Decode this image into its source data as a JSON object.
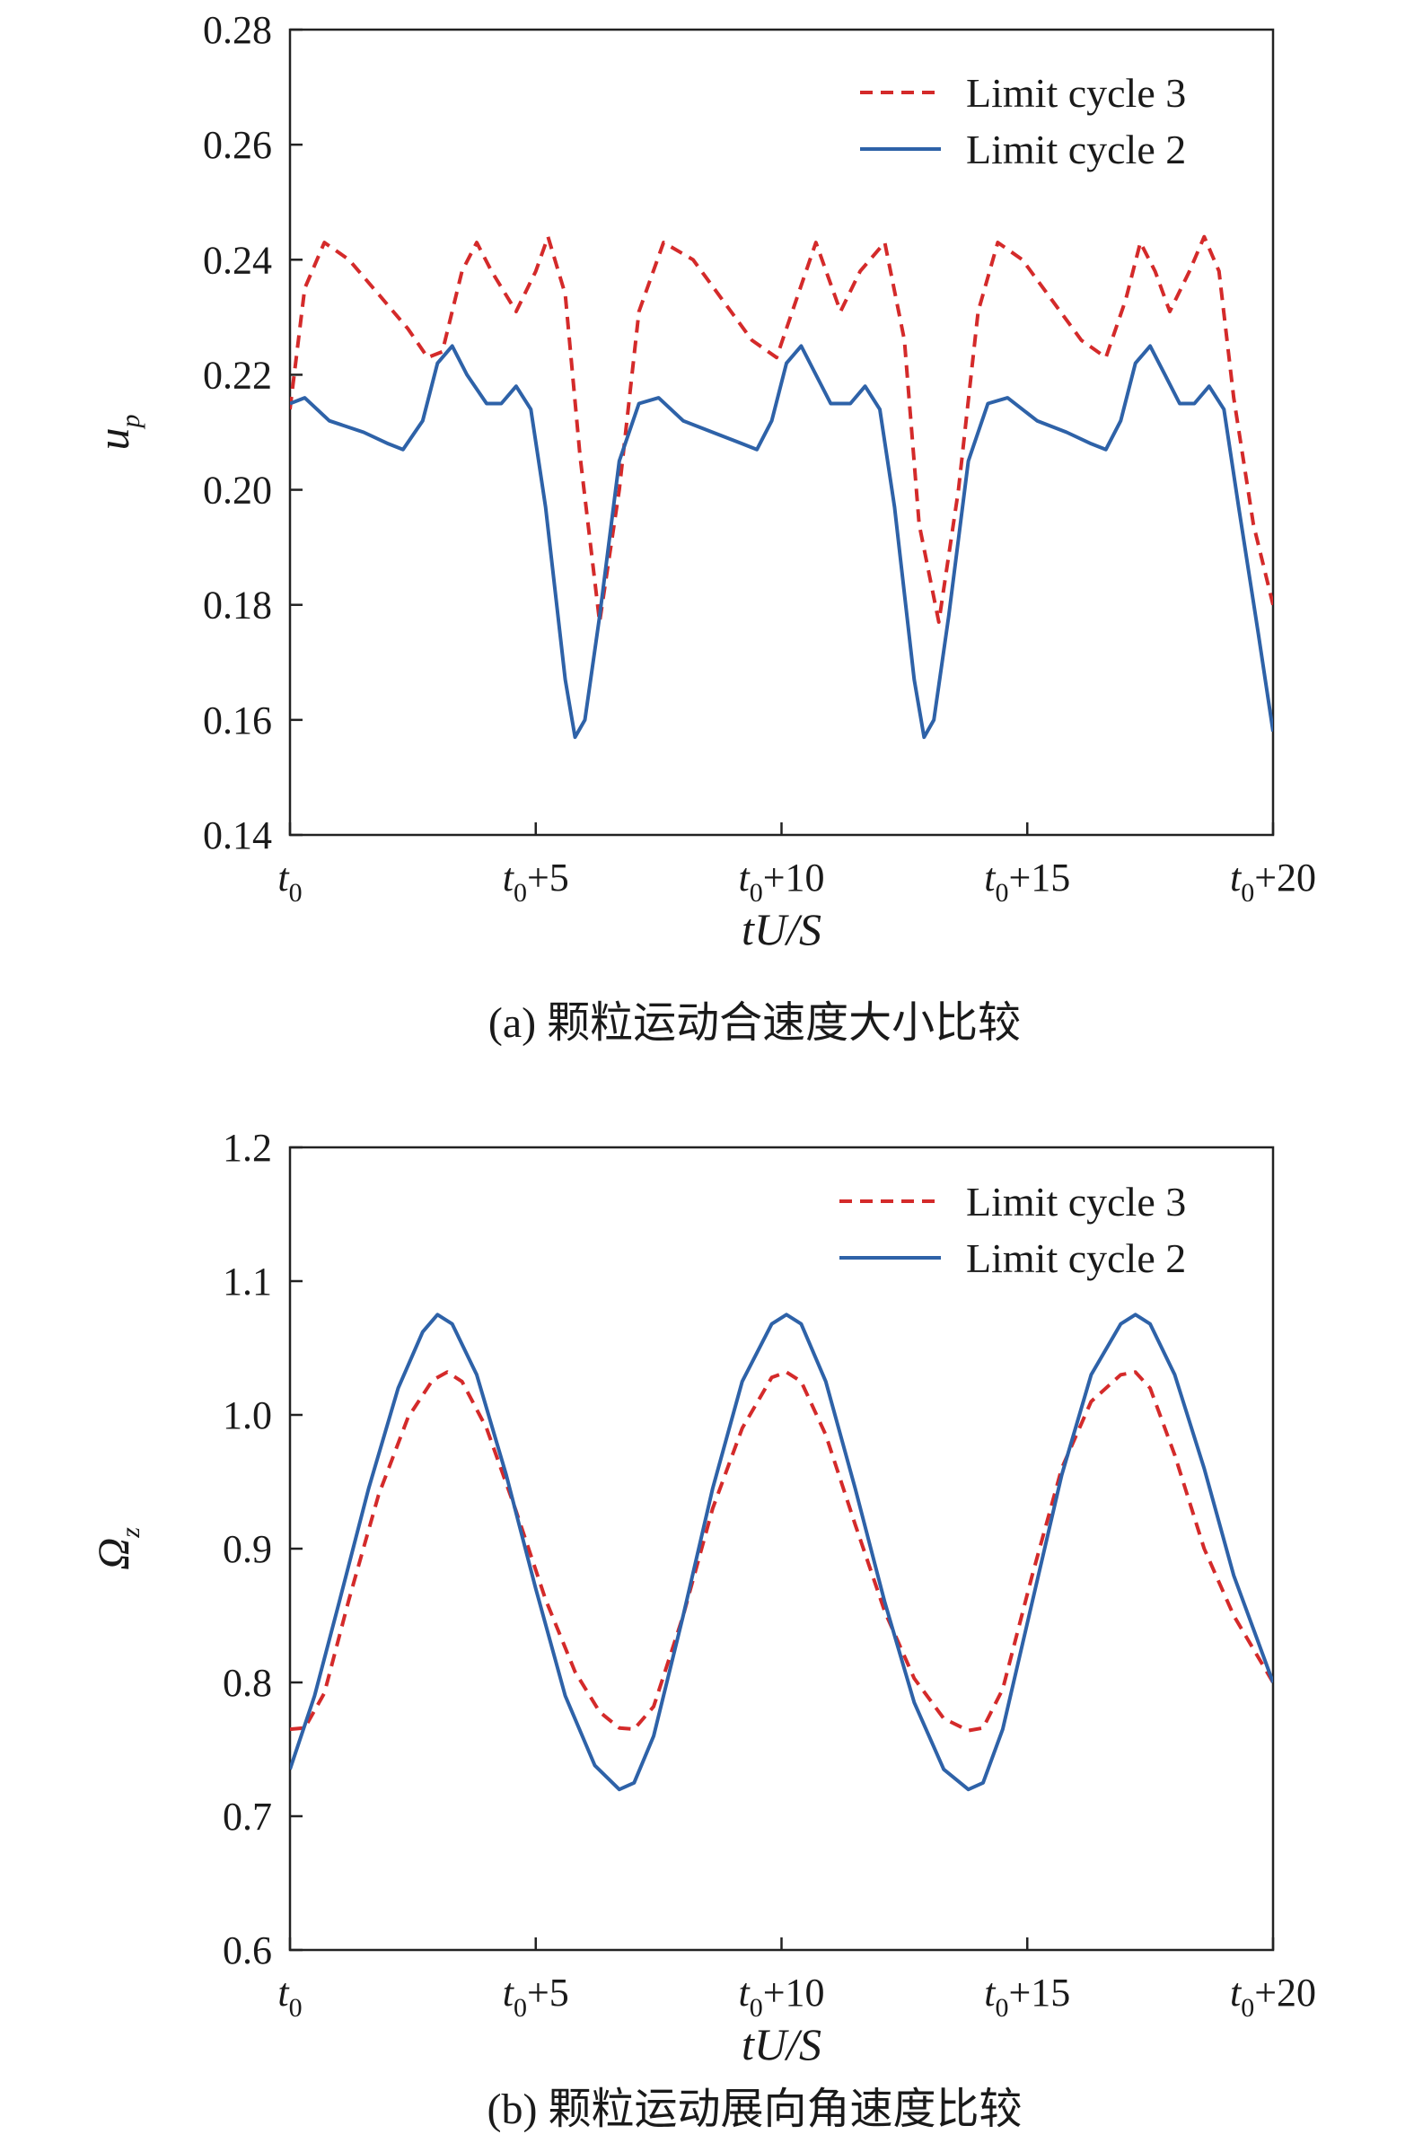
{
  "chart_data": [
    {
      "type": "line",
      "caption": "(a) 颗粒运动合速度大小比较",
      "xlabel": "tU/S",
      "ylabel": "u_p",
      "xlim": [
        0,
        20
      ],
      "ylim": [
        0.14,
        0.28
      ],
      "xticks": [
        0,
        5,
        10,
        15,
        20
      ],
      "xtick_labels": [
        "t_0",
        "t_0+5",
        "t_0+10",
        "t_0+15",
        "t_0+20"
      ],
      "yticks": [
        0.14,
        0.16,
        0.18,
        0.2,
        0.22,
        0.24,
        0.26,
        0.28
      ],
      "ytick_labels": [
        "0.14",
        "0.16",
        "0.18",
        "0.20",
        "0.22",
        "0.24",
        "0.26",
        "0.28"
      ],
      "legend_position": "top-right",
      "series": [
        {
          "name": "Limit cycle 3",
          "color": "#d42a2a",
          "style": "dashed",
          "x": [
            0,
            0.3,
            0.7,
            1.2,
            1.8,
            2.4,
            2.8,
            3.1,
            3.5,
            3.8,
            4.1,
            4.6,
            5.0,
            5.25,
            5.6,
            5.9,
            6.3,
            6.7,
            7.1,
            7.6,
            8.2,
            8.8,
            9.4,
            9.9,
            10.3,
            10.7,
            11.2,
            11.6,
            12.1,
            12.5,
            12.8,
            13.2,
            13.6,
            14.0,
            14.4,
            14.9,
            15.5,
            16.1,
            16.6,
            17.0,
            17.3,
            17.6,
            17.9,
            18.3,
            18.6,
            18.9,
            19.2,
            19.6,
            20.0
          ],
          "y": [
            0.214,
            0.235,
            0.243,
            0.24,
            0.234,
            0.228,
            0.223,
            0.224,
            0.238,
            0.243,
            0.238,
            0.231,
            0.238,
            0.244,
            0.234,
            0.206,
            0.177,
            0.2,
            0.231,
            0.243,
            0.24,
            0.233,
            0.226,
            0.223,
            0.233,
            0.243,
            0.231,
            0.238,
            0.243,
            0.226,
            0.194,
            0.177,
            0.2,
            0.231,
            0.243,
            0.24,
            0.233,
            0.226,
            0.223,
            0.233,
            0.243,
            0.238,
            0.231,
            0.238,
            0.244,
            0.238,
            0.216,
            0.194,
            0.18
          ]
        },
        {
          "name": "Limit cycle 2",
          "color": "#2e62a8",
          "style": "solid",
          "x": [
            0,
            0.3,
            0.8,
            1.5,
            2.0,
            2.3,
            2.7,
            3.0,
            3.3,
            3.6,
            4.0,
            4.3,
            4.6,
            4.9,
            5.2,
            5.6,
            5.8,
            6.0,
            6.3,
            6.7,
            7.1,
            7.5,
            8.0,
            8.6,
            9.2,
            9.5,
            9.8,
            10.1,
            10.4,
            10.7,
            11.0,
            11.4,
            11.7,
            12.0,
            12.3,
            12.7,
            12.9,
            13.1,
            13.4,
            13.8,
            14.2,
            14.6,
            15.2,
            15.8,
            16.3,
            16.6,
            16.9,
            17.2,
            17.5,
            17.8,
            18.1,
            18.4,
            18.7,
            19.0,
            19.3,
            19.7,
            20.0
          ],
          "y": [
            0.215,
            0.216,
            0.212,
            0.21,
            0.208,
            0.207,
            0.212,
            0.222,
            0.225,
            0.22,
            0.215,
            0.215,
            0.218,
            0.214,
            0.197,
            0.167,
            0.157,
            0.16,
            0.178,
            0.205,
            0.215,
            0.216,
            0.212,
            0.21,
            0.208,
            0.207,
            0.212,
            0.222,
            0.225,
            0.22,
            0.215,
            0.215,
            0.218,
            0.214,
            0.197,
            0.167,
            0.157,
            0.16,
            0.178,
            0.205,
            0.215,
            0.216,
            0.212,
            0.21,
            0.208,
            0.207,
            0.212,
            0.222,
            0.225,
            0.22,
            0.215,
            0.215,
            0.218,
            0.214,
            0.197,
            0.175,
            0.158
          ]
        }
      ]
    },
    {
      "type": "line",
      "caption": "(b) 颗粒运动展向角速度比较",
      "xlabel": "tU/S",
      "ylabel": "Ω_z",
      "xlim": [
        0,
        20
      ],
      "ylim": [
        0.6,
        1.2
      ],
      "xticks": [
        0,
        5,
        10,
        15,
        20
      ],
      "xtick_labels": [
        "t_0",
        "t_0+5",
        "t_0+10",
        "t_0+15",
        "t_0+20"
      ],
      "yticks": [
        0.6,
        0.7,
        0.8,
        0.9,
        1.0,
        1.1,
        1.2
      ],
      "ytick_labels": [
        "0.6",
        "0.7",
        "0.8",
        "0.9",
        "1.0",
        "1.1",
        "1.2"
      ],
      "legend_position": "top-right",
      "series": [
        {
          "name": "Limit cycle 3",
          "color": "#d42a2a",
          "style": "dashed",
          "x": [
            0,
            0.3,
            0.7,
            1.2,
            1.8,
            2.4,
            2.9,
            3.2,
            3.5,
            4.0,
            4.6,
            5.2,
            5.8,
            6.3,
            6.7,
            7.0,
            7.4,
            8.0,
            8.6,
            9.2,
            9.8,
            10.1,
            10.4,
            10.9,
            11.5,
            12.1,
            12.7,
            13.3,
            13.8,
            14.1,
            14.5,
            15.1,
            15.7,
            16.3,
            16.9,
            17.2,
            17.5,
            18.0,
            18.6,
            19.2,
            20.0
          ],
          "y": [
            0.765,
            0.766,
            0.792,
            0.862,
            0.94,
            0.998,
            1.026,
            1.032,
            1.025,
            0.99,
            0.928,
            0.862,
            0.808,
            0.778,
            0.766,
            0.765,
            0.782,
            0.85,
            0.93,
            0.99,
            1.028,
            1.032,
            1.025,
            0.985,
            0.918,
            0.853,
            0.803,
            0.773,
            0.764,
            0.766,
            0.795,
            0.88,
            0.96,
            1.01,
            1.03,
            1.032,
            1.02,
            0.97,
            0.9,
            0.85,
            0.8
          ]
        },
        {
          "name": "Limit cycle 2",
          "color": "#2e62a8",
          "style": "solid",
          "x": [
            0,
            0.5,
            1.0,
            1.6,
            2.2,
            2.7,
            3.0,
            3.3,
            3.8,
            4.4,
            5.0,
            5.6,
            6.2,
            6.7,
            7.0,
            7.4,
            8.0,
            8.6,
            9.2,
            9.8,
            10.1,
            10.4,
            10.9,
            11.5,
            12.1,
            12.7,
            13.3,
            13.8,
            14.1,
            14.5,
            15.1,
            15.7,
            16.3,
            16.9,
            17.2,
            17.5,
            18.0,
            18.6,
            19.2,
            20.0
          ],
          "y": [
            0.735,
            0.79,
            0.86,
            0.945,
            1.02,
            1.062,
            1.075,
            1.068,
            1.03,
            0.955,
            0.87,
            0.79,
            0.738,
            0.72,
            0.725,
            0.76,
            0.85,
            0.945,
            1.025,
            1.068,
            1.075,
            1.068,
            1.025,
            0.945,
            0.86,
            0.785,
            0.735,
            0.72,
            0.725,
            0.765,
            0.86,
            0.955,
            1.03,
            1.068,
            1.075,
            1.068,
            1.03,
            0.96,
            0.88,
            0.8
          ]
        }
      ]
    }
  ]
}
